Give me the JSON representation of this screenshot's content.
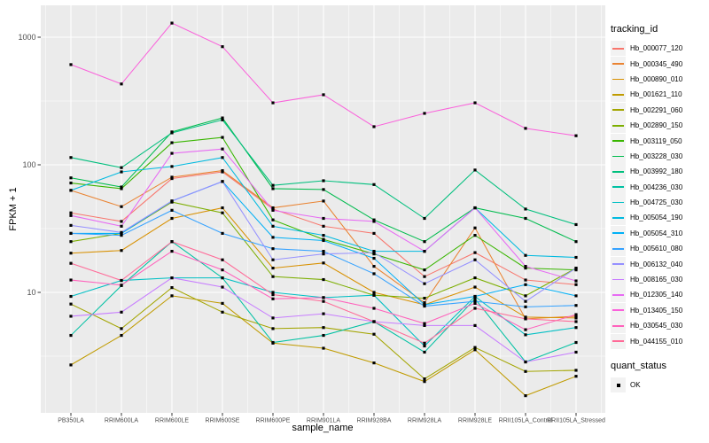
{
  "chart_data": {
    "type": "line",
    "title": "",
    "xlabel": "sample_name",
    "ylabel": "FPKM + 1",
    "y_scale": "log10",
    "grid": true,
    "legend_position": "right",
    "legend_title": "tracking_id",
    "quant_legend": {
      "title": "quant_status",
      "items": [
        "OK"
      ]
    },
    "marker": "small-black-square",
    "y_ticks": [
      "10",
      "100",
      "1000"
    ],
    "y_tick_values": [
      10,
      100,
      1000
    ],
    "y_minor_values": [
      3.162,
      31.623,
      316.23
    ],
    "ylim": [
      1.2,
      1700
    ],
    "categories": [
      "PB350LA",
      "RRIM600LA",
      "RRIM600LE",
      "RRIM600SE",
      "RRIM600PE",
      "RRIM901LA",
      "RRIM928BA",
      "RRIM928LA",
      "RRIM928LE",
      "RRII105LA_Control",
      "RRII105LA_Stressed"
    ],
    "series": [
      {
        "name": "Hb_000077_120",
        "color": "#F8766D",
        "values": [
          42,
          36,
          78,
          88,
          45,
          33,
          29,
          13.3,
          20.5,
          12.5,
          11.5
        ]
      },
      {
        "name": "Hb_000345_490",
        "color": "#EA8331",
        "values": [
          63,
          47,
          80,
          90,
          46,
          52,
          16,
          8.3,
          32,
          6.2,
          6.5
        ]
      },
      {
        "name": "Hb_000890_010",
        "color": "#D89000",
        "values": [
          20.3,
          21.3,
          38,
          46,
          15.5,
          17,
          10,
          8,
          11,
          6.4,
          6.3
        ]
      },
      {
        "name": "Hb_001621_110",
        "color": "#C09B00",
        "values": [
          2.7,
          4.6,
          9.4,
          8.2,
          4.0,
          3.65,
          2.8,
          2.0,
          3.55,
          1.55,
          2.2
        ]
      },
      {
        "name": "Hb_002291_060",
        "color": "#A3A500",
        "values": [
          8.1,
          5.2,
          10.9,
          7.0,
          5.2,
          5.3,
          4.7,
          2.1,
          3.7,
          2.4,
          2.45
        ]
      },
      {
        "name": "Hb_002890_150",
        "color": "#7CAE00",
        "values": [
          25,
          29,
          51,
          42,
          13.3,
          12.6,
          9.5,
          9,
          13,
          9.4,
          15.5
        ]
      },
      {
        "name": "Hb_003119_050",
        "color": "#39B600",
        "values": [
          72,
          65,
          149,
          164,
          37,
          26,
          20,
          15,
          28,
          15.5,
          15
        ]
      },
      {
        "name": "Hb_003228_030",
        "color": "#00BB4E",
        "values": [
          79,
          67,
          181,
          233,
          65,
          64,
          37,
          25,
          46,
          38,
          25
        ]
      },
      {
        "name": "Hb_003992_180",
        "color": "#00BF7D",
        "values": [
          114,
          95,
          178,
          225,
          69,
          75,
          70,
          38,
          91,
          45,
          34
        ]
      },
      {
        "name": "Hb_004236_030",
        "color": "#00C1A3",
        "values": [
          4.6,
          11.3,
          25,
          13,
          4.05,
          4.6,
          5.9,
          3.4,
          8.9,
          2.85,
          4.05
        ]
      },
      {
        "name": "Hb_004725_030",
        "color": "#00BFC4",
        "values": [
          9.3,
          12.4,
          13,
          13,
          10,
          9.1,
          9.5,
          3.8,
          9.3,
          4.65,
          5.3
        ]
      },
      {
        "name": "Hb_005054_190",
        "color": "#00BAE0",
        "values": [
          63,
          88,
          97,
          114,
          33,
          28,
          21,
          21,
          46,
          19.5,
          18.8
        ]
      },
      {
        "name": "Hb_005054_310",
        "color": "#00B0F6",
        "values": [
          29,
          29,
          52,
          74,
          27,
          25.5,
          18.5,
          8.0,
          9.3,
          11.5,
          9.4
        ]
      },
      {
        "name": "Hb_005610_080",
        "color": "#35A2FF",
        "values": [
          29,
          28,
          44,
          29,
          22,
          21,
          14,
          7.8,
          8.5,
          7.7,
          7.9
        ]
      },
      {
        "name": "Hb_006132_040",
        "color": "#9590FF",
        "values": [
          33.5,
          29.5,
          52,
          74,
          18,
          20,
          20.5,
          11.7,
          18,
          8.5,
          15.5
        ]
      },
      {
        "name": "Hb_008165_030",
        "color": "#C77CFF",
        "values": [
          6.5,
          7.0,
          13,
          11,
          6.3,
          6.8,
          5.9,
          5.5,
          5.5,
          2.85,
          3.4
        ]
      },
      {
        "name": "Hb_012305_140",
        "color": "#E76BF3",
        "values": [
          40,
          33,
          123,
          133,
          44,
          38,
          36,
          21,
          46,
          16,
          12.3
        ]
      },
      {
        "name": "Hb_013405_150",
        "color": "#FA62DB",
        "values": [
          610,
          430,
          1290,
          843,
          306,
          354,
          199,
          253,
          306,
          193,
          169
        ]
      },
      {
        "name": "Hb_030545_030",
        "color": "#FF62BC",
        "values": [
          12.5,
          11.4,
          21,
          15,
          8.9,
          9.1,
          7.5,
          5.7,
          8.2,
          5.1,
          6.7
        ]
      },
      {
        "name": "Hb_044155_010",
        "color": "#FF6A98",
        "values": [
          16.9,
          12.4,
          25,
          18,
          9.6,
          8.5,
          5.9,
          4.0,
          7.5,
          6.2,
          5.9
        ]
      }
    ]
  },
  "colors": {
    "panel_bg": "#EBEBEB",
    "grid": "#FFFFFF",
    "tick_label": "#4D4D4D",
    "tick_mark": "#333333",
    "axis_title": "#000000",
    "legend_key_bg": "#F2F2F2",
    "point": "#000000"
  }
}
